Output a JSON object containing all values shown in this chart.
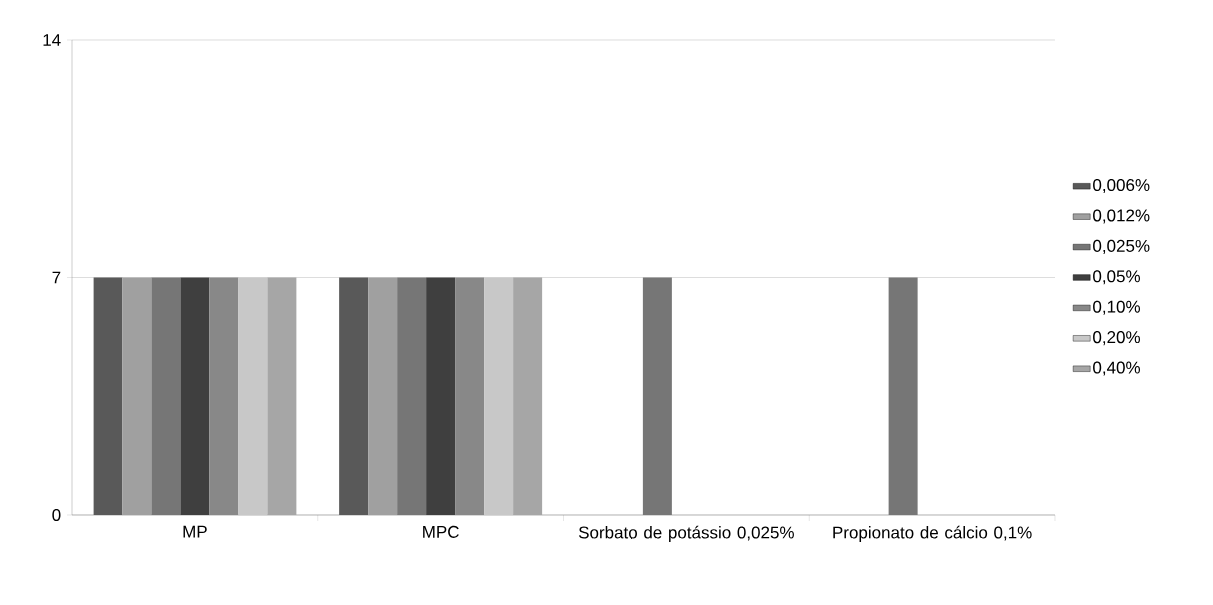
{
  "chart_data": {
    "type": "bar",
    "categories": [
      "MP",
      "MPC",
      "Sorbato de potássio 0,025%",
      "Propionato de cálcio 0,1%"
    ],
    "series": [
      {
        "name": "0,006%",
        "color": "#595959",
        "values": [
          7,
          7,
          null,
          null
        ]
      },
      {
        "name": "0,012%",
        "color": "#a0a0a0",
        "values": [
          7,
          7,
          null,
          null
        ]
      },
      {
        "name": "0,025%",
        "color": "#767676",
        "values": [
          7,
          7,
          7,
          7
        ]
      },
      {
        "name": "0,05%",
        "color": "#3f3f3f",
        "values": [
          7,
          7,
          null,
          null
        ]
      },
      {
        "name": "0,10%",
        "color": "#888888",
        "values": [
          7,
          7,
          null,
          null
        ]
      },
      {
        "name": "0,20%",
        "color": "#c8c8c8",
        "values": [
          7,
          7,
          null,
          null
        ]
      },
      {
        "name": "0,40%",
        "color": "#a6a6a6",
        "values": [
          7,
          7,
          null,
          null
        ]
      }
    ],
    "ylim": [
      0,
      14
    ],
    "yticks": [
      0,
      7,
      14
    ],
    "grid": "y",
    "legend": "right"
  }
}
